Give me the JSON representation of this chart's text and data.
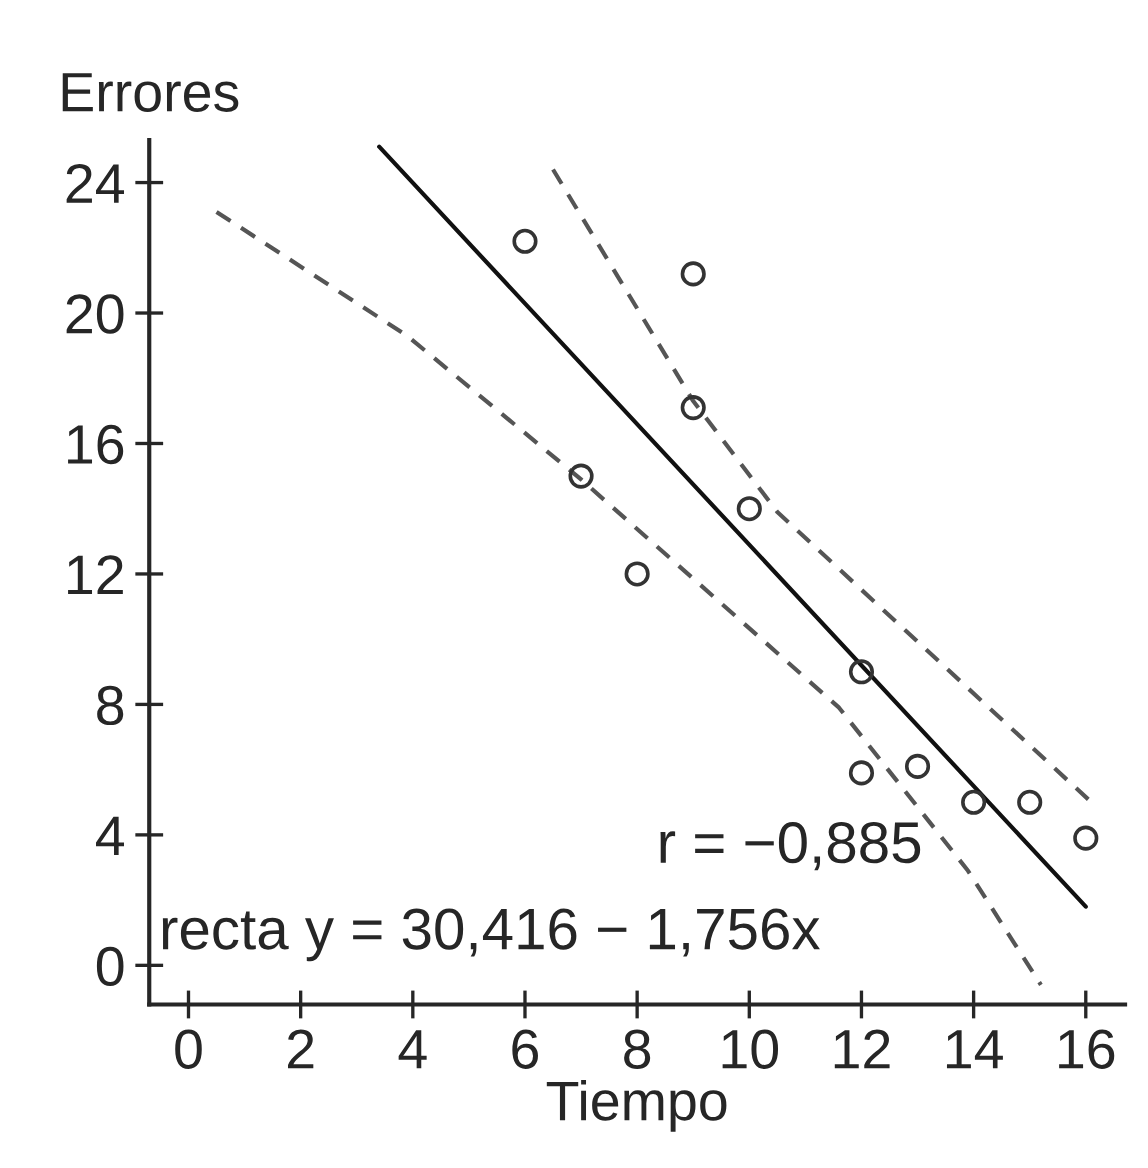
{
  "chart_data": {
    "type": "scatter",
    "xlabel": "Tiempo",
    "ylabel": "Errores",
    "xlim": [
      -0.7,
      16.7
    ],
    "ylim": [
      -1.2,
      25.3
    ],
    "xticks": [
      0,
      2,
      4,
      6,
      8,
      10,
      12,
      14,
      16
    ],
    "yticks": [
      0,
      4,
      8,
      12,
      16,
      20,
      24
    ],
    "grid": false,
    "series": [
      {
        "marker": "circle",
        "color": "#333333",
        "x": [
          6,
          7,
          8,
          9,
          9,
          10,
          12,
          12,
          13,
          14,
          15,
          16
        ],
        "values": [
          22.2,
          15.0,
          12.0,
          21.2,
          17.1,
          14.0,
          9.0,
          5.9,
          6.1,
          5.0,
          5.0,
          3.9
        ]
      },
      {
        "type": "line",
        "line_style": "solid",
        "color": "#111111",
        "x": [
          3.4,
          16
        ],
        "values": [
          25.1,
          1.8
        ]
      },
      {
        "type": "line",
        "line_style": "dashed",
        "color": "#555555",
        "x": [
          0.5,
          3.9,
          7,
          11.6,
          13.9,
          15.2
        ],
        "values": [
          23.1,
          19.3,
          14.9,
          7.9,
          2.9,
          -0.6
        ]
      },
      {
        "type": "line",
        "line_style": "dashed",
        "color": "#555555",
        "x": [
          6.5,
          9,
          10.5,
          14.4,
          16.1
        ],
        "values": [
          24.4,
          17.3,
          13.9,
          7.7,
          5.0
        ]
      }
    ],
    "annotations": [
      "r = −0,885",
      "recta y = 30,416 − 1,756x"
    ]
  }
}
